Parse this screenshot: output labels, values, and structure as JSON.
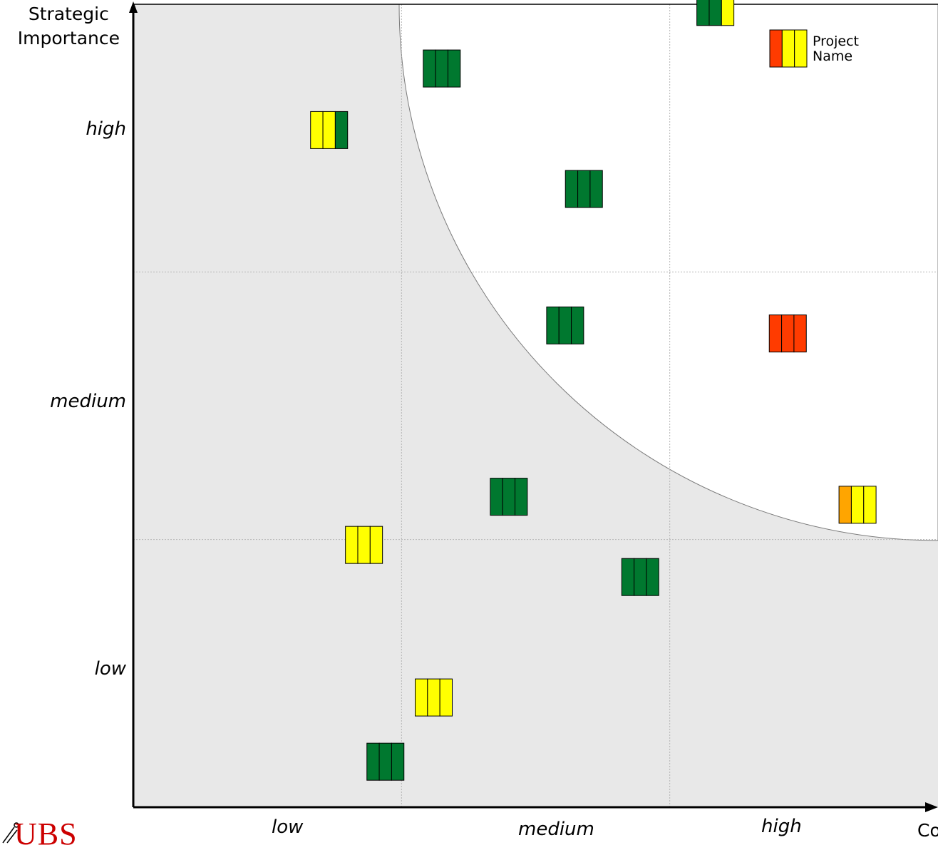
{
  "axes": {
    "y_title_line1": "Strategic",
    "y_title_line2": "Importance",
    "x_title": "Co",
    "y_ticks": [
      "high",
      "medium",
      "low"
    ],
    "x_ticks": [
      "low",
      "medium",
      "high"
    ]
  },
  "legend": {
    "line1": "Project",
    "line2": "Name",
    "colors": [
      "#ff3b00",
      "#ffff00",
      "#ffff00"
    ]
  },
  "logo": {
    "text": "UBS"
  },
  "colors": {
    "green": "#00782f",
    "yellow": "#ffff00",
    "orange": "#ffa500",
    "red": "#ff3b00",
    "shade": "#e8e8e8"
  },
  "chart_data": {
    "type": "scatter",
    "x_categories": [
      "low",
      "medium",
      "high"
    ],
    "y_categories": [
      "low",
      "medium",
      "high"
    ],
    "xlim": [
      0,
      3
    ],
    "ylim": [
      0,
      3
    ],
    "grid": true,
    "points": [
      {
        "x": 1.15,
        "y": 2.76,
        "colors": [
          "green",
          "green",
          "green"
        ]
      },
      {
        "x": 2.17,
        "y": 2.99,
        "colors": [
          "green",
          "green",
          "yellow"
        ]
      },
      {
        "x": 0.73,
        "y": 2.53,
        "colors": [
          "yellow",
          "yellow",
          "green"
        ]
      },
      {
        "x": 1.68,
        "y": 2.31,
        "colors": [
          "green",
          "green",
          "green"
        ]
      },
      {
        "x": 1.61,
        "y": 1.8,
        "colors": [
          "green",
          "green",
          "green"
        ]
      },
      {
        "x": 2.44,
        "y": 1.77,
        "colors": [
          "red",
          "red",
          "red"
        ]
      },
      {
        "x": 2.7,
        "y": 1.13,
        "colors": [
          "orange",
          "yellow",
          "yellow"
        ]
      },
      {
        "x": 1.4,
        "y": 1.16,
        "colors": [
          "green",
          "green",
          "green"
        ]
      },
      {
        "x": 0.86,
        "y": 0.98,
        "colors": [
          "yellow",
          "yellow",
          "yellow"
        ]
      },
      {
        "x": 1.89,
        "y": 0.86,
        "colors": [
          "green",
          "green",
          "green"
        ]
      },
      {
        "x": 1.12,
        "y": 0.41,
        "colors": [
          "yellow",
          "yellow",
          "yellow"
        ]
      },
      {
        "x": 0.94,
        "y": 0.17,
        "colors": [
          "green",
          "green",
          "green"
        ]
      }
    ]
  }
}
